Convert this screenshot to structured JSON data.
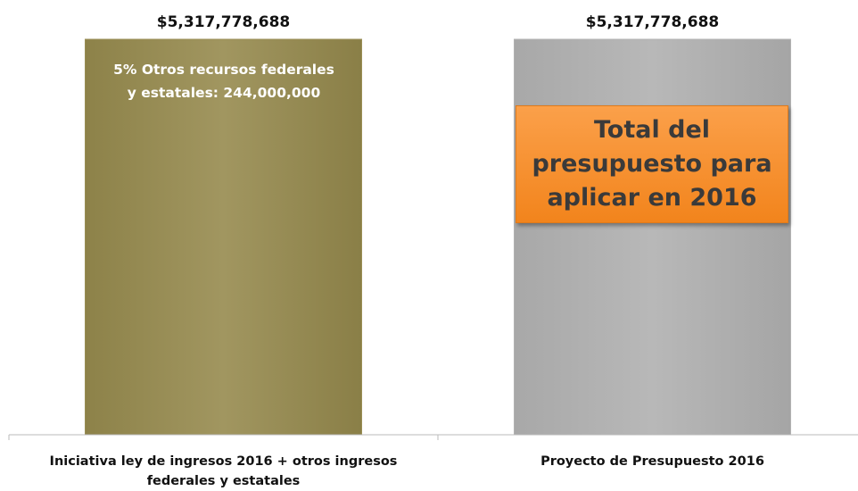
{
  "chart_data": {
    "type": "bar",
    "categories": [
      "Iniciativa ley de ingresos 2016 + otros ingresos federales y estatales",
      "Proyecto de Presupuesto 2016"
    ],
    "values": [
      5317778688,
      5317778688
    ],
    "value_labels": [
      "$5,317,778,688",
      "$5,317,778,688"
    ],
    "colors": [
      "#9a8e55",
      "#b2b2b2"
    ],
    "ylim": [
      0,
      5317778688
    ],
    "annotations": [
      [
        "5% Otros recursos federales",
        "y estatales: 244,000,000"
      ],
      [
        "Total del",
        "presupuesto para",
        "aplicar en 2016"
      ]
    ]
  }
}
